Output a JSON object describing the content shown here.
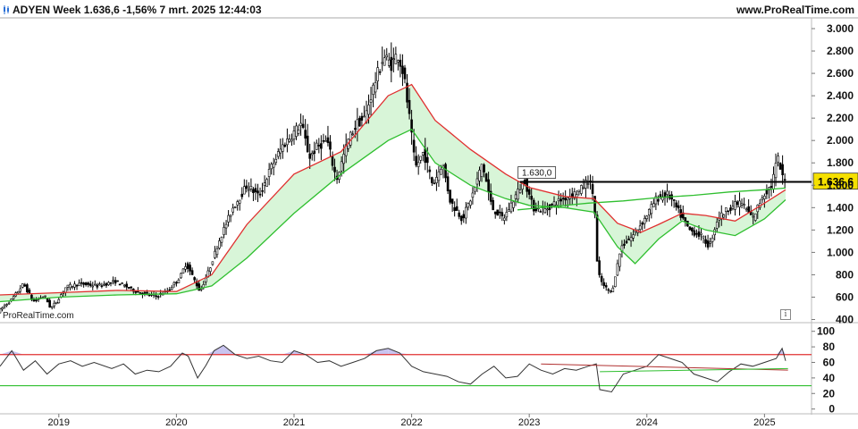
{
  "header": {
    "title": "ADYEN Week 1.636,6 -1,56% 7 mrt. 2025 12:44:03",
    "source": "www.ProRealTime.com"
  },
  "watermark": "ProRealTime.com",
  "info_glyph": "i",
  "colors": {
    "candle": "#000000",
    "ma_fast": "#e03030",
    "ma_slow": "#2fbf2f",
    "fill_up": "#d8f5d8",
    "fill_down": "#fbe0e0",
    "resistance": "#000000",
    "price_badge": "#f5e000",
    "rsi_line": "#333333",
    "rsi_upper": "#e03030",
    "rsi_lower": "#2fbf2f",
    "rsi_overbought_fill": "#c9c4f0",
    "rsi_trend": "#b03030",
    "rsi_trend2": "#2fbf2f"
  },
  "chart_data": [
    {
      "type": "candlestick",
      "title": "ADYEN Week",
      "ylim": [
        380,
        3080
      ],
      "yticks": [
        400,
        600,
        800,
        1000,
        1200,
        1400,
        1600,
        1800,
        2000,
        2200,
        2400,
        2600,
        2800,
        3000
      ],
      "ytick_labels": [
        "400",
        "600",
        "800",
        "1.000",
        "1.200",
        "1.400",
        "1.600",
        "1.800",
        "2.000",
        "2.200",
        "2.400",
        "2.600",
        "2.800",
        "3.000"
      ],
      "xlim": [
        2018.5,
        2025.4
      ],
      "xticks": [
        2019,
        2020,
        2021,
        2022,
        2023,
        2024,
        2025
      ],
      "xtick_labels": [
        "2019",
        "2020",
        "2021",
        "2022",
        "2023",
        "2024",
        "2025"
      ],
      "price_path": [
        [
          2018.5,
          470
        ],
        [
          2018.62,
          580
        ],
        [
          2018.72,
          720
        ],
        [
          2018.8,
          560
        ],
        [
          2018.9,
          610
        ],
        [
          2018.95,
          500
        ],
        [
          2019.0,
          560
        ],
        [
          2019.08,
          690
        ],
        [
          2019.2,
          720
        ],
        [
          2019.35,
          700
        ],
        [
          2019.5,
          740
        ],
        [
          2019.6,
          690
        ],
        [
          2019.7,
          640
        ],
        [
          2019.85,
          610
        ],
        [
          2019.95,
          660
        ],
        [
          2020.05,
          780
        ],
        [
          2020.1,
          900
        ],
        [
          2020.15,
          800
        ],
        [
          2020.22,
          650
        ],
        [
          2020.3,
          850
        ],
        [
          2020.38,
          1100
        ],
        [
          2020.5,
          1400
        ],
        [
          2020.62,
          1600
        ],
        [
          2020.72,
          1500
        ],
        [
          2020.82,
          1750
        ],
        [
          2020.92,
          1950
        ],
        [
          2021.0,
          2050
        ],
        [
          2021.08,
          2150
        ],
        [
          2021.15,
          1850
        ],
        [
          2021.22,
          1950
        ],
        [
          2021.3,
          2000
        ],
        [
          2021.38,
          1650
        ],
        [
          2021.48,
          2000
        ],
        [
          2021.55,
          2150
        ],
        [
          2021.62,
          2200
        ],
        [
          2021.7,
          2500
        ],
        [
          2021.78,
          2750
        ],
        [
          2021.85,
          2680
        ],
        [
          2021.9,
          2780
        ],
        [
          2021.95,
          2600
        ],
        [
          2022.0,
          2200
        ],
        [
          2022.05,
          1750
        ],
        [
          2022.12,
          1900
        ],
        [
          2022.2,
          1600
        ],
        [
          2022.28,
          1800
        ],
        [
          2022.35,
          1450
        ],
        [
          2022.45,
          1300
        ],
        [
          2022.55,
          1550
        ],
        [
          2022.62,
          1800
        ],
        [
          2022.7,
          1400
        ],
        [
          2022.8,
          1300
        ],
        [
          2022.9,
          1500
        ],
        [
          2022.98,
          1650
        ],
        [
          2023.05,
          1400
        ],
        [
          2023.15,
          1380
        ],
        [
          2023.25,
          1450
        ],
        [
          2023.35,
          1500
        ],
        [
          2023.45,
          1550
        ],
        [
          2023.52,
          1650
        ],
        [
          2023.57,
          1500
        ],
        [
          2023.6,
          820
        ],
        [
          2023.65,
          700
        ],
        [
          2023.72,
          640
        ],
        [
          2023.8,
          1050
        ],
        [
          2023.9,
          1150
        ],
        [
          2024.0,
          1300
        ],
        [
          2024.1,
          1480
        ],
        [
          2024.2,
          1520
        ],
        [
          2024.28,
          1380
        ],
        [
          2024.38,
          1200
        ],
        [
          2024.48,
          1150
        ],
        [
          2024.55,
          1050
        ],
        [
          2024.62,
          1300
        ],
        [
          2024.72,
          1400
        ],
        [
          2024.82,
          1450
        ],
        [
          2024.92,
          1300
        ],
        [
          2025.0,
          1500
        ],
        [
          2025.08,
          1600
        ],
        [
          2025.13,
          1850
        ],
        [
          2025.18,
          1636
        ]
      ],
      "series": [
        {
          "name": "",
          "kind": "ma_fast",
          "x": [
            2018.5,
            2019.0,
            2019.5,
            2020.0,
            2020.3,
            2020.6,
            2021.0,
            2021.4,
            2021.8,
            2022.0,
            2022.2,
            2022.5,
            2022.8,
            2023.0,
            2023.3,
            2023.55,
            2023.75,
            2023.95,
            2024.1,
            2024.3,
            2024.5,
            2024.75,
            2025.0,
            2025.18
          ],
          "values": [
            620,
            640,
            660,
            650,
            800,
            1250,
            1700,
            1900,
            2400,
            2500,
            2180,
            1920,
            1700,
            1580,
            1500,
            1480,
            1260,
            1180,
            1250,
            1350,
            1330,
            1280,
            1440,
            1560
          ]
        },
        {
          "name": "",
          "kind": "ma_slow",
          "x": [
            2018.5,
            2019.0,
            2019.5,
            2020.0,
            2020.3,
            2020.6,
            2021.0,
            2021.4,
            2021.8,
            2022.0,
            2022.2,
            2022.5,
            2022.8,
            2023.0,
            2023.3,
            2023.55,
            2023.75,
            2023.9,
            2024.1,
            2024.3,
            2024.5,
            2024.75,
            2025.0,
            2025.18
          ],
          "values": [
            560,
            600,
            620,
            630,
            700,
            950,
            1350,
            1700,
            2000,
            2100,
            1800,
            1600,
            1480,
            1420,
            1400,
            1360,
            1050,
            900,
            1120,
            1280,
            1200,
            1150,
            1300,
            1470
          ]
        },
        {
          "name": "",
          "kind": "long_avg",
          "x": [
            2022.9,
            2023.2,
            2023.5,
            2023.8,
            2024.1,
            2024.4,
            2024.7,
            2025.0,
            2025.18
          ],
          "values": [
            1380,
            1410,
            1440,
            1460,
            1490,
            1510,
            1540,
            1560,
            1575
          ]
        }
      ],
      "annotations": [
        {
          "type": "hline",
          "y": 1630,
          "x_from": 2022.92,
          "x_to": 2025.4,
          "label": "1.630,0"
        }
      ],
      "last_price_label": "1.636,6",
      "last_price": 1636.6
    },
    {
      "type": "line",
      "title": "",
      "ylim": [
        -5,
        110
      ],
      "yticks": [
        0,
        20,
        40,
        60,
        80,
        100
      ],
      "ytick_labels": [
        "0",
        "20",
        "40",
        "60",
        "80",
        "100"
      ],
      "hlines": [
        70,
        30
      ],
      "series": [
        {
          "name": "",
          "x": [
            2018.5,
            2018.6,
            2018.7,
            2018.8,
            2018.9,
            2019.0,
            2019.1,
            2019.2,
            2019.3,
            2019.45,
            2019.55,
            2019.65,
            2019.75,
            2019.85,
            2019.95,
            2020.05,
            2020.1,
            2020.18,
            2020.25,
            2020.32,
            2020.4,
            2020.5,
            2020.6,
            2020.7,
            2020.8,
            2020.9,
            2021.0,
            2021.1,
            2021.2,
            2021.3,
            2021.4,
            2021.5,
            2021.6,
            2021.7,
            2021.8,
            2021.9,
            2022.0,
            2022.1,
            2022.2,
            2022.3,
            2022.4,
            2022.5,
            2022.6,
            2022.7,
            2022.8,
            2022.9,
            2023.0,
            2023.1,
            2023.2,
            2023.3,
            2023.4,
            2023.5,
            2023.57,
            2023.6,
            2023.7,
            2023.8,
            2023.9,
            2024.0,
            2024.1,
            2024.2,
            2024.3,
            2024.4,
            2024.5,
            2024.6,
            2024.7,
            2024.8,
            2024.9,
            2025.0,
            2025.1,
            2025.15,
            2025.18
          ],
          "values": [
            55,
            75,
            50,
            62,
            45,
            58,
            62,
            55,
            60,
            52,
            58,
            45,
            50,
            48,
            55,
            72,
            68,
            40,
            56,
            75,
            82,
            70,
            65,
            68,
            62,
            60,
            75,
            70,
            60,
            62,
            55,
            60,
            65,
            75,
            78,
            72,
            55,
            48,
            45,
            42,
            35,
            32,
            45,
            55,
            40,
            42,
            58,
            50,
            45,
            52,
            50,
            55,
            58,
            25,
            22,
            45,
            50,
            55,
            70,
            65,
            60,
            45,
            40,
            35,
            48,
            58,
            55,
            60,
            65,
            78,
            62
          ]
        }
      ],
      "trendlines": [
        {
          "x": [
            2023.1,
            2025.2
          ],
          "y": [
            58,
            50
          ],
          "kind": "upper"
        },
        {
          "x": [
            2023.6,
            2025.2
          ],
          "y": [
            48,
            52
          ],
          "kind": "lower"
        }
      ]
    }
  ]
}
